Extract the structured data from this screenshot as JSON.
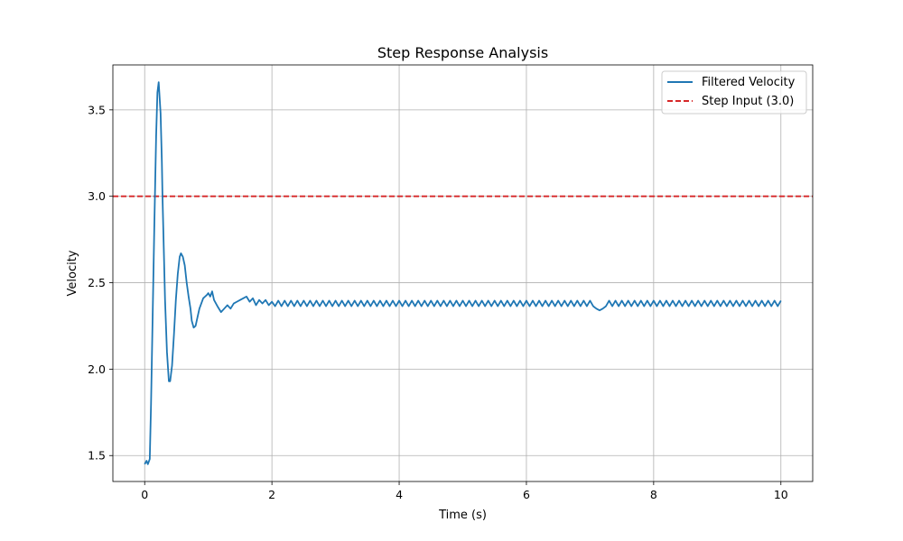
{
  "chart_data": {
    "type": "line",
    "title": "Step Response Analysis",
    "xlabel": "Time (s)",
    "ylabel": "Velocity",
    "xlim": [
      -0.5,
      10.5
    ],
    "ylim": [
      1.35,
      3.76
    ],
    "grid": true,
    "legend_position": "top-right",
    "x_ticks": [
      0,
      2,
      4,
      6,
      8,
      10
    ],
    "x_tick_labels": [
      "0",
      "2",
      "4",
      "6",
      "8",
      "10"
    ],
    "y_ticks": [
      1.5,
      2.0,
      2.5,
      3.0,
      3.5
    ],
    "y_tick_labels": [
      "1.5",
      "2.0",
      "2.5",
      "3.0",
      "3.5"
    ],
    "colors": {
      "series": "#1f77b4",
      "reference": "#d62728",
      "grid": "#b0b0b0"
    },
    "series": [
      {
        "name": "Filtered Velocity",
        "style": "solid",
        "x": [
          0,
          0.03,
          0.05,
          0.08,
          0.1,
          0.12,
          0.15,
          0.18,
          0.2,
          0.22,
          0.25,
          0.27,
          0.28,
          0.3,
          0.32,
          0.35,
          0.38,
          0.4,
          0.43,
          0.46,
          0.49,
          0.52,
          0.55,
          0.57,
          0.6,
          0.63,
          0.66,
          0.69,
          0.72,
          0.74,
          0.77,
          0.8,
          0.83,
          0.86,
          0.89,
          0.92,
          0.95,
          0.98,
          1.0,
          1.03,
          1.06,
          1.09,
          1.12,
          1.15,
          1.2,
          1.25,
          1.3,
          1.35,
          1.4,
          1.45,
          1.5,
          1.55,
          1.6,
          1.65,
          1.7,
          1.75,
          1.8,
          1.85,
          1.9,
          1.95,
          2.0
        ],
        "y": [
          1.45,
          1.47,
          1.45,
          1.48,
          1.8,
          2.2,
          2.8,
          3.35,
          3.6,
          3.66,
          3.48,
          3.2,
          3.0,
          2.7,
          2.4,
          2.1,
          1.93,
          1.93,
          2.02,
          2.2,
          2.4,
          2.55,
          2.65,
          2.67,
          2.65,
          2.6,
          2.5,
          2.42,
          2.35,
          2.28,
          2.24,
          2.25,
          2.3,
          2.35,
          2.38,
          2.41,
          2.42,
          2.43,
          2.44,
          2.42,
          2.45,
          2.4,
          2.38,
          2.36,
          2.33,
          2.35,
          2.37,
          2.35,
          2.38,
          2.39,
          2.4,
          2.41,
          2.42,
          2.39,
          2.41,
          2.37,
          2.4,
          2.38,
          2.4,
          2.37,
          2.39
        ],
        "steady_state": {
          "x_start": 2.0,
          "x_end": 10.0,
          "center": 2.38,
          "ripple_amplitude": 0.016,
          "ripple_period": 0.1,
          "dip_at_x": 7.15,
          "dip_value": 2.34
        }
      },
      {
        "name": "Step Input (3.0)",
        "style": "dashed",
        "y_constant": 3.0
      }
    ]
  }
}
